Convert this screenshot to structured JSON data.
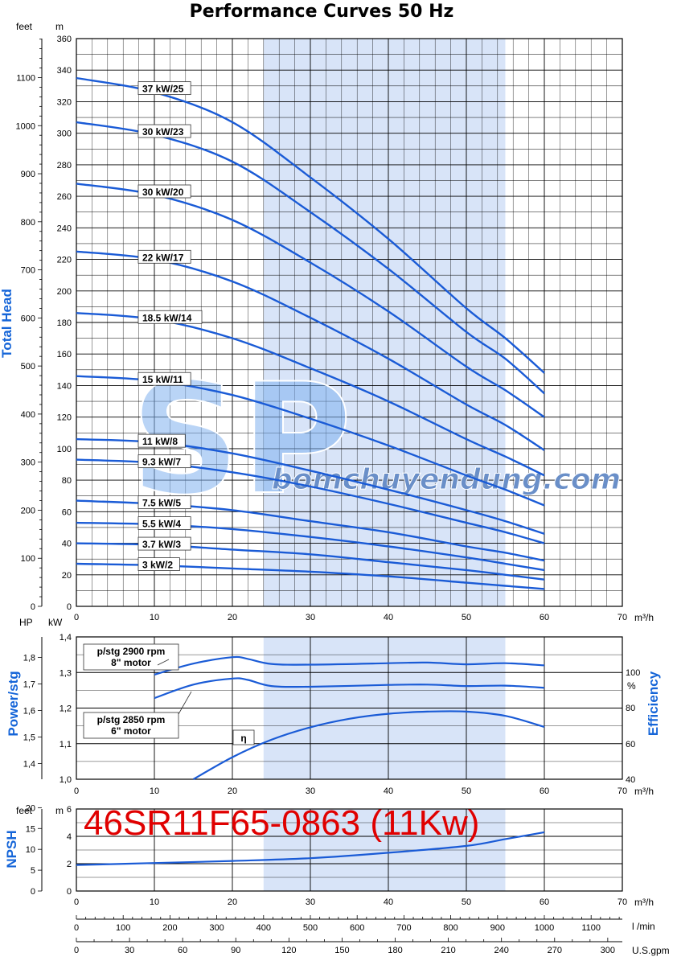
{
  "chart_data": [
    {
      "type": "line",
      "title": "Performance Curves 50 Hz",
      "ylabel": "Total Head",
      "y_units": [
        "feet",
        "m"
      ],
      "x_unit": "m³/h",
      "xlim": [
        0,
        70
      ],
      "ylim": [
        0,
        360
      ],
      "x_ticks": [
        0,
        10,
        20,
        30,
        40,
        50,
        60,
        70
      ],
      "y_ticks": [
        0,
        20,
        40,
        60,
        80,
        100,
        120,
        140,
        160,
        180,
        200,
        220,
        240,
        260,
        280,
        300,
        320,
        340,
        360
      ],
      "feet_ticks": [
        0,
        100,
        200,
        300,
        400,
        500,
        600,
        700,
        800,
        900,
        1000,
        1100
      ],
      "grid": true,
      "highlight_range": [
        24,
        55
      ],
      "series": [
        {
          "name": "37 kW/25",
          "x": [
            0,
            10,
            20,
            30,
            40,
            50,
            55,
            60
          ],
          "y": [
            335,
            326,
            307,
            272,
            233,
            189,
            170,
            148
          ]
        },
        {
          "name": "30 kW/23",
          "x": [
            0,
            10,
            20,
            30,
            40,
            50,
            55,
            60
          ],
          "y": [
            307,
            299,
            282,
            250,
            214,
            174,
            157,
            135
          ]
        },
        {
          "name": "30 kW/20",
          "x": [
            0,
            10,
            20,
            30,
            40,
            50,
            55,
            60
          ],
          "y": [
            268,
            261,
            245,
            218,
            187,
            152,
            137,
            120
          ]
        },
        {
          "name": "22 kW/17",
          "x": [
            0,
            10,
            20,
            30,
            40,
            50,
            55,
            60
          ],
          "y": [
            225,
            220,
            206,
            183,
            157,
            128,
            115,
            99
          ]
        },
        {
          "name": "18.5 kW/14",
          "x": [
            0,
            10,
            20,
            30,
            40,
            50,
            55,
            60
          ],
          "y": [
            186,
            182,
            170,
            151,
            130,
            106,
            95,
            83
          ]
        },
        {
          "name": "15 kW/11",
          "x": [
            0,
            10,
            20,
            30,
            40,
            50,
            55,
            60
          ],
          "y": [
            146,
            143,
            134,
            119,
            102,
            83,
            74,
            64
          ]
        },
        {
          "name": "11 kW/8",
          "x": [
            0,
            10,
            20,
            30,
            40,
            50,
            55,
            60
          ],
          "y": [
            106,
            104,
            97,
            86,
            74,
            61,
            54,
            46
          ]
        },
        {
          "name": "9.3 kW/7",
          "x": [
            0,
            10,
            20,
            30,
            40,
            50,
            55,
            60
          ],
          "y": [
            93,
            91,
            85,
            76,
            65,
            53,
            47,
            40
          ]
        },
        {
          "name": "7.5 kW/5",
          "x": [
            0,
            10,
            20,
            30,
            40,
            50,
            55,
            60
          ],
          "y": [
            67,
            65,
            61,
            54,
            47,
            38,
            34,
            29
          ]
        },
        {
          "name": "5.5 kW/4",
          "x": [
            0,
            10,
            20,
            30,
            40,
            50,
            55,
            60
          ],
          "y": [
            53,
            52,
            49,
            44,
            38,
            31,
            27,
            23
          ]
        },
        {
          "name": "3.7 kW/3",
          "x": [
            0,
            10,
            20,
            30,
            40,
            50,
            55,
            60
          ],
          "y": [
            40,
            39,
            36,
            33,
            28,
            23,
            20,
            17
          ]
        },
        {
          "name": "3 kW/2",
          "x": [
            0,
            10,
            20,
            30,
            40,
            50,
            55,
            60
          ],
          "y": [
            27,
            26,
            24,
            22,
            19,
            15,
            13,
            11
          ]
        }
      ]
    },
    {
      "type": "line",
      "ylabel": "Power/stg",
      "y2label": "Efficiency",
      "y_units": [
        "HP",
        "kW"
      ],
      "x_unit": "m³/h",
      "xlim": [
        0,
        70
      ],
      "ylim": [
        1.0,
        1.4
      ],
      "kw_ticks": [
        "1,0",
        "1,1",
        "1,2",
        "1,3",
        "1,4"
      ],
      "hp_ticks": [
        "1,4",
        "1,5",
        "1,6",
        "1,7",
        "1,8"
      ],
      "efficiency_ticks": [
        "40",
        "60",
        "80",
        "100"
      ],
      "efficiency_unit": "%",
      "x_ticks": [
        0,
        10,
        20,
        30,
        40,
        50,
        60,
        70
      ],
      "highlight_range": [
        24,
        55
      ],
      "series": [
        {
          "name": "p/stg 2900 rpm\n8\" motor",
          "x": [
            10,
            15,
            20,
            22,
            25,
            30,
            40,
            45,
            50,
            55,
            60
          ],
          "y": [
            1.294,
            1.325,
            1.343,
            1.338,
            1.324,
            1.322,
            1.326,
            1.328,
            1.323,
            1.326,
            1.32
          ]
        },
        {
          "name": "p/stg 2850 rpm\n6\" motor",
          "x": [
            10,
            15,
            20,
            22,
            25,
            30,
            40,
            45,
            50,
            55,
            60
          ],
          "y": [
            1.228,
            1.266,
            1.283,
            1.279,
            1.262,
            1.26,
            1.265,
            1.266,
            1.262,
            1.263,
            1.257
          ]
        },
        {
          "name": "η",
          "x": [
            15,
            20,
            25,
            30,
            35,
            40,
            45,
            50,
            55,
            60
          ],
          "y": [
            1.0,
            1.062,
            1.111,
            1.146,
            1.17,
            1.184,
            1.19,
            1.19,
            1.178,
            1.147
          ]
        }
      ]
    },
    {
      "type": "line",
      "ylabel": "NPSH",
      "y_units": [
        "feet",
        "m"
      ],
      "x_unit": "m³/h",
      "xlim": [
        0,
        70
      ],
      "ylim": [
        0,
        6
      ],
      "y_ticks": [
        0,
        2,
        4,
        6
      ],
      "feet_ticks": [
        0,
        5,
        10,
        15,
        20
      ],
      "x_ticks": [
        0,
        10,
        20,
        30,
        40,
        50,
        60,
        70
      ],
      "highlight_range": [
        24,
        55
      ],
      "series": [
        {
          "name": "",
          "x": [
            0,
            10,
            20,
            30,
            40,
            50,
            55,
            60
          ],
          "y": [
            1.9,
            2.05,
            2.2,
            2.4,
            2.8,
            3.3,
            3.8,
            4.3
          ]
        }
      ]
    },
    {
      "type": "table",
      "lmin_unit": "l /min",
      "lmin_ticks": [
        0,
        100,
        200,
        300,
        400,
        500,
        600,
        700,
        800,
        900,
        1000,
        1100
      ],
      "gpm_unit": "U.S.gpm",
      "gpm_ticks": [
        0,
        30,
        60,
        90,
        120,
        150,
        180,
        210,
        240,
        270,
        300
      ]
    }
  ],
  "model_label": "46SR11F65-0863 (11Kw)",
  "watermark": {
    "letters": "SP",
    "site": "bomchuyendung.com"
  },
  "colors": {
    "curve": "#1a5bd6",
    "highlight": "#d8e4f8",
    "title_blue": "#1565d8",
    "model_red": "#e00000"
  }
}
